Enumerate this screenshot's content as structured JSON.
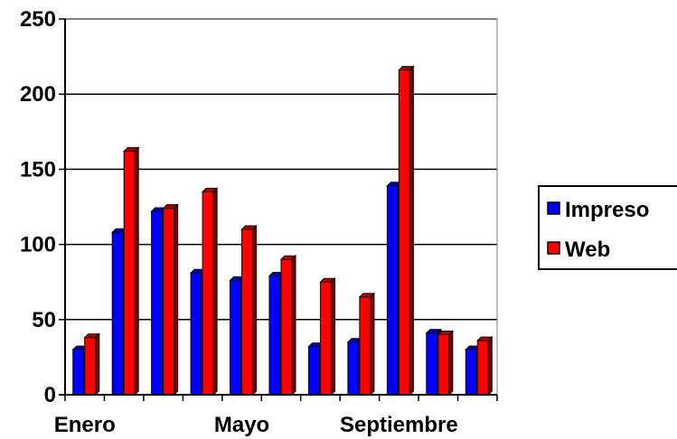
{
  "chart_data": {
    "type": "bar",
    "title": "",
    "xlabel": "",
    "ylabel": "",
    "categories": [
      "Enero",
      "",
      "",
      "",
      "Mayo",
      "",
      "",
      "",
      "Septiembre",
      "",
      ""
    ],
    "series": [
      {
        "name": "Impreso",
        "color": "#0000ff",
        "values": [
          30,
          108,
          122,
          81,
          76,
          79,
          32,
          35,
          139,
          41,
          30
        ]
      },
      {
        "name": "Web",
        "color": "#ff0000",
        "values": [
          38,
          162,
          124,
          135,
          110,
          90,
          75,
          65,
          216,
          40,
          36
        ]
      }
    ],
    "ylim": [
      0,
      250
    ],
    "yticks": [
      0,
      50,
      100,
      150,
      200,
      250
    ],
    "grid": true,
    "legend_position": "right",
    "style": "3d-bar"
  }
}
